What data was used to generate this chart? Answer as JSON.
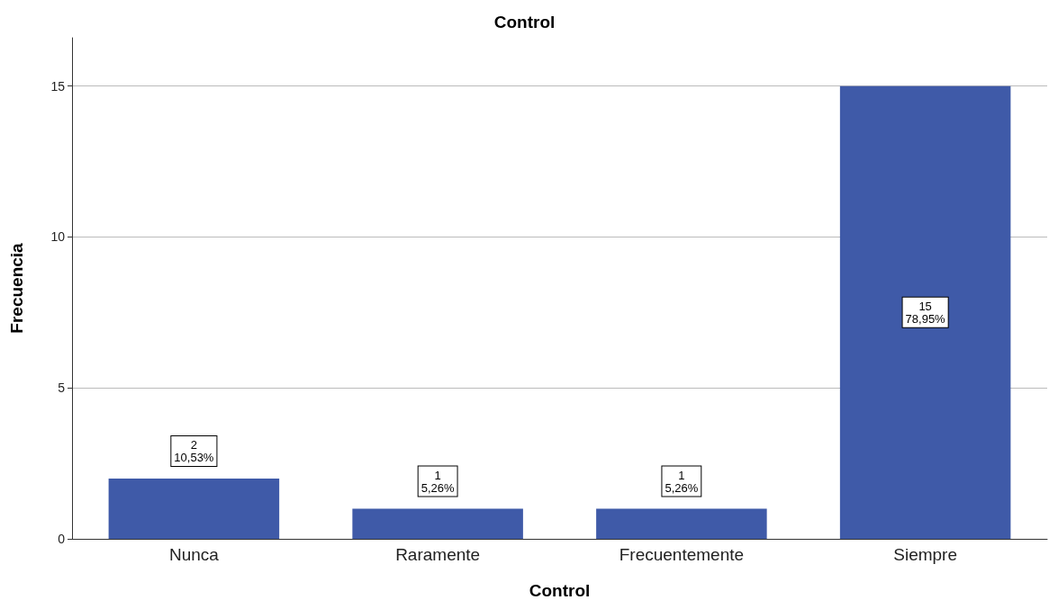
{
  "chart_data": {
    "type": "bar",
    "title": "Control",
    "xlabel": "Control",
    "ylabel": "Frecuencia",
    "categories": [
      "Nunca",
      "Raramente",
      "Frecuentemente",
      "Siempre"
    ],
    "values": [
      2,
      1,
      1,
      15
    ],
    "color": "#3f5aa8",
    "value_labels": [
      "2\n10,53%",
      "1\n5,26%",
      "1\n5,26%",
      "15\n78,95%"
    ],
    "ylim": [
      0,
      16.6
    ],
    "yticks": [
      0,
      5,
      10,
      15
    ],
    "grid": "y"
  }
}
